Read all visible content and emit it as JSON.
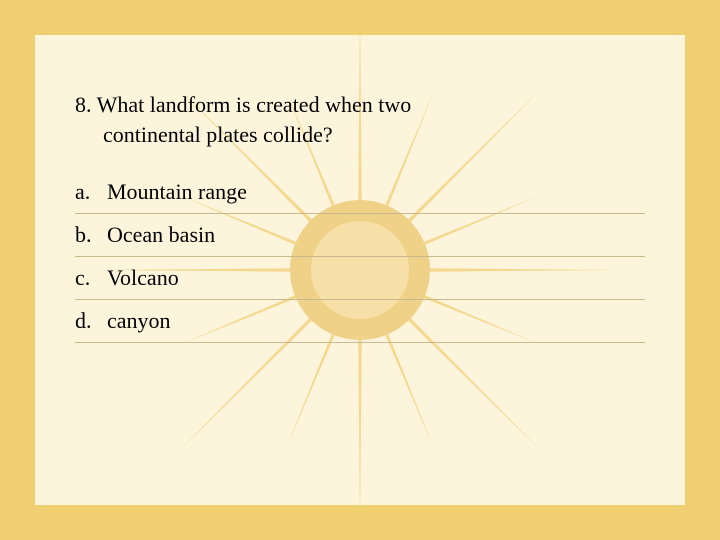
{
  "colors": {
    "bg_outer": "#efcf6f",
    "bg_inner": "#fdf4dc",
    "sun_ray": "#f1d27f",
    "sun_core_outer": "#f0d188",
    "sun_core_inner": "#f6e0a8",
    "text": "#000000",
    "divider": "#c9b98e"
  },
  "question": {
    "number": "8.",
    "line1": "What landform is created when two",
    "line2": "continental plates collide?",
    "fontsize": 22
  },
  "options": [
    {
      "letter": "a.",
      "text": "Mountain range"
    },
    {
      "letter": "b.",
      "text": "Ocean basin"
    },
    {
      "letter": "c.",
      "text": "Volcano"
    },
    {
      "letter": "d.",
      "text": "canyon"
    }
  ],
  "sun": {
    "num_rays": 16,
    "ray_length": 260,
    "core_radius": 70
  }
}
